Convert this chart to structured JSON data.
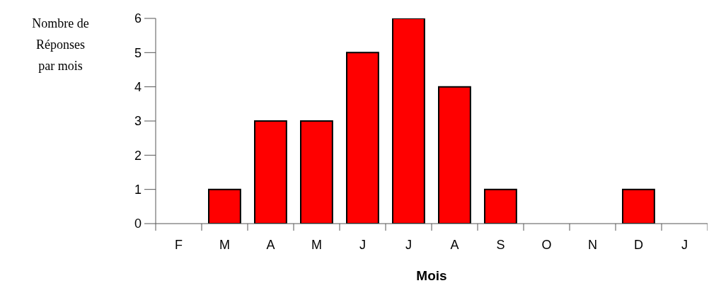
{
  "chart_data": {
    "type": "bar",
    "xlabel": "Mois",
    "ylabel": "Nombre de Réponses par mois",
    "categories": [
      "F",
      "M",
      "A",
      "M",
      "J",
      "J",
      "A",
      "S",
      "O",
      "N",
      "D",
      "J"
    ],
    "values": [
      0,
      1,
      3,
      3,
      5,
      6,
      4,
      1,
      0,
      0,
      1,
      0
    ],
    "color": "#ff0000",
    "ylim": [
      0,
      6
    ],
    "yticks": [
      0,
      1,
      2,
      3,
      4,
      5,
      6
    ],
    "grid": false
  }
}
